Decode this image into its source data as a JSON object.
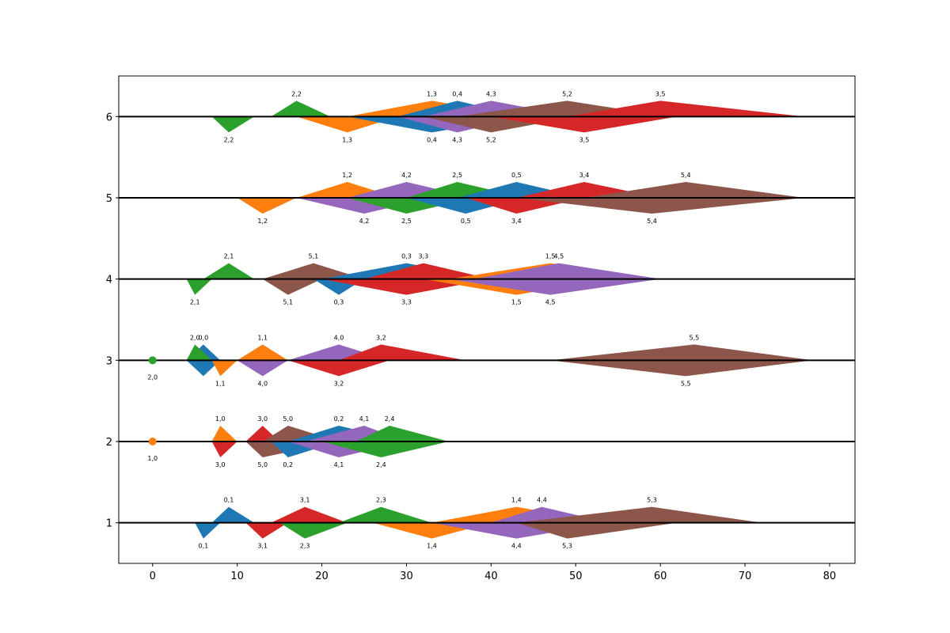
{
  "chart_data": {
    "type": "kite",
    "title": "",
    "xlabel": "",
    "ylabel": "",
    "xlim": [
      -4,
      83
    ],
    "ylim": [
      0.5,
      6.5
    ],
    "xticks": [
      0,
      10,
      20,
      30,
      40,
      50,
      60,
      70,
      80
    ],
    "yticks": [
      1,
      2,
      3,
      4,
      5,
      6
    ],
    "grid": false,
    "baselines": [
      1,
      2,
      3,
      4,
      5,
      6
    ],
    "colors": [
      "#1f77b4",
      "#ff7f0e",
      "#2ca02c",
      "#d62728",
      "#9467bd",
      "#8c564b"
    ],
    "dots": [
      {
        "x": 0,
        "y": 2,
        "color": "#ff7f0e",
        "label": "1,0"
      },
      {
        "x": 0,
        "y": 3,
        "color": "#2ca02c",
        "label": "2,0"
      }
    ],
    "kites": [
      {
        "label": "0,0",
        "color": 0,
        "y": 3,
        "x0": 4,
        "xpeak": 6,
        "x1": 8,
        "dir": "both"
      },
      {
        "label": "2,0",
        "color": 2,
        "y": 3,
        "x0": 4,
        "xpeak": 5,
        "x1": 7,
        "dir": "up"
      },
      {
        "label": "1,1",
        "color": 1,
        "y": 3,
        "x0": 7,
        "xpeak": 8,
        "x1": 10,
        "dir": "down"
      },
      {
        "label": "1,1",
        "color": 1,
        "y": 3,
        "x0": 10,
        "xpeak": 13,
        "x1": 16,
        "dir": "up"
      },
      {
        "label": "4,0",
        "color": 4,
        "y": 3,
        "x0": 10,
        "xpeak": 13,
        "x1": 16,
        "dir": "down"
      },
      {
        "label": "4,0",
        "color": 4,
        "y": 3,
        "x0": 16,
        "xpeak": 22,
        "x1": 28,
        "dir": "up"
      },
      {
        "label": "3,2",
        "color": 3,
        "y": 3,
        "x0": 16,
        "xpeak": 22,
        "x1": 28,
        "dir": "down"
      },
      {
        "label": "3,2",
        "color": 3,
        "y": 3,
        "x0": 22,
        "xpeak": 27,
        "x1": 37,
        "dir": "up"
      },
      {
        "label": "5,5",
        "color": 5,
        "y": 3,
        "x0": 47,
        "xpeak": 64,
        "x1": 78,
        "dir": "up"
      },
      {
        "label": "5,5",
        "color": 5,
        "y": 3,
        "x0": 47,
        "xpeak": 63,
        "x1": 78,
        "dir": "down"
      },
      {
        "label": "1,0",
        "color": 1,
        "y": 2,
        "x0": 7,
        "xpeak": 8,
        "x1": 10,
        "dir": "up"
      },
      {
        "label": "3,0",
        "color": 3,
        "y": 2,
        "x0": 7,
        "xpeak": 8,
        "x1": 10,
        "dir": "down"
      },
      {
        "label": "3,0",
        "color": 3,
        "y": 2,
        "x0": 11,
        "xpeak": 13,
        "x1": 15,
        "dir": "up"
      },
      {
        "label": "5,0",
        "color": 5,
        "y": 2,
        "x0": 11,
        "xpeak": 13,
        "x1": 22,
        "dir": "down"
      },
      {
        "label": "5,0",
        "color": 5,
        "y": 2,
        "x0": 13,
        "xpeak": 16,
        "x1": 22,
        "dir": "up"
      },
      {
        "label": "0,2",
        "color": 0,
        "y": 2,
        "x0": 14,
        "xpeak": 16,
        "x1": 22,
        "dir": "down"
      },
      {
        "label": "0,2",
        "color": 0,
        "y": 2,
        "x0": 16,
        "xpeak": 22,
        "x1": 30,
        "dir": "up"
      },
      {
        "label": "4,1",
        "color": 4,
        "y": 2,
        "x0": 16,
        "xpeak": 22,
        "x1": 30,
        "dir": "down"
      },
      {
        "label": "4,1",
        "color": 4,
        "y": 2,
        "x0": 18,
        "xpeak": 25,
        "x1": 30,
        "dir": "up"
      },
      {
        "label": "2,4",
        "color": 2,
        "y": 2,
        "x0": 20,
        "xpeak": 27,
        "x1": 35,
        "dir": "down"
      },
      {
        "label": "2,4",
        "color": 2,
        "y": 2,
        "x0": 24,
        "xpeak": 28,
        "x1": 35,
        "dir": "up"
      },
      {
        "label": "0,1",
        "color": 0,
        "y": 1,
        "x0": 5,
        "xpeak": 6,
        "x1": 8,
        "dir": "down"
      },
      {
        "label": "0,1",
        "color": 0,
        "y": 1,
        "x0": 7,
        "xpeak": 9,
        "x1": 12,
        "dir": "up"
      },
      {
        "label": "3,1",
        "color": 3,
        "y": 1,
        "x0": 11,
        "xpeak": 13,
        "x1": 16,
        "dir": "down"
      },
      {
        "label": "3,1",
        "color": 3,
        "y": 1,
        "x0": 14,
        "xpeak": 18,
        "x1": 23,
        "dir": "up"
      },
      {
        "label": "2,3",
        "color": 2,
        "y": 1,
        "x0": 15,
        "xpeak": 18,
        "x1": 23,
        "dir": "down"
      },
      {
        "label": "2,3",
        "color": 2,
        "y": 1,
        "x0": 22,
        "xpeak": 27,
        "x1": 33,
        "dir": "up"
      },
      {
        "label": "1,4",
        "color": 1,
        "y": 1,
        "x0": 26,
        "xpeak": 33,
        "x1": 40,
        "dir": "down"
      },
      {
        "label": "1,4",
        "color": 1,
        "y": 1,
        "x0": 33,
        "xpeak": 43,
        "x1": 54,
        "dir": "up"
      },
      {
        "label": "4,4",
        "color": 4,
        "y": 1,
        "x0": 33,
        "xpeak": 43,
        "x1": 54,
        "dir": "down"
      },
      {
        "label": "4,4",
        "color": 4,
        "y": 1,
        "x0": 40,
        "xpeak": 46,
        "x1": 54,
        "dir": "up"
      },
      {
        "label": "5,3",
        "color": 5,
        "y": 1,
        "x0": 43,
        "xpeak": 49,
        "x1": 62,
        "dir": "down"
      },
      {
        "label": "5,3",
        "color": 5,
        "y": 1,
        "x0": 43,
        "xpeak": 59,
        "x1": 72,
        "dir": "up"
      },
      {
        "label": "2,1",
        "color": 2,
        "y": 4,
        "x0": 4,
        "xpeak": 5,
        "x1": 7,
        "dir": "down"
      },
      {
        "label": "2,1",
        "color": 2,
        "y": 4,
        "x0": 6,
        "xpeak": 9,
        "x1": 12,
        "dir": "up"
      },
      {
        "label": "5,1",
        "color": 5,
        "y": 4,
        "x0": 13,
        "xpeak": 16,
        "x1": 20,
        "dir": "down"
      },
      {
        "label": "5,1",
        "color": 5,
        "y": 4,
        "x0": 13,
        "xpeak": 19,
        "x1": 25,
        "dir": "up"
      },
      {
        "label": "0,3",
        "color": 0,
        "y": 4,
        "x0": 19,
        "xpeak": 22,
        "x1": 25,
        "dir": "down"
      },
      {
        "label": "0,3",
        "color": 0,
        "y": 4,
        "x0": 20,
        "xpeak": 30,
        "x1": 40,
        "dir": "up"
      },
      {
        "label": "3,3",
        "color": 3,
        "y": 4,
        "x0": 20,
        "xpeak": 30,
        "x1": 40,
        "dir": "down"
      },
      {
        "label": "3,3",
        "color": 3,
        "y": 4,
        "x0": 25,
        "xpeak": 32,
        "x1": 40,
        "dir": "up"
      },
      {
        "label": "1,5",
        "color": 1,
        "y": 4,
        "x0": 32,
        "xpeak": 43,
        "x1": 54,
        "dir": "down"
      },
      {
        "label": "1,5",
        "color": 1,
        "y": 4,
        "x0": 35,
        "xpeak": 47,
        "x1": 60,
        "dir": "up"
      },
      {
        "label": "4,5",
        "color": 4,
        "y": 4,
        "x0": 35,
        "xpeak": 47,
        "x1": 60,
        "dir": "down"
      },
      {
        "label": "4,5",
        "color": 4,
        "y": 4,
        "x0": 38,
        "xpeak": 48,
        "x1": 60,
        "dir": "up"
      },
      {
        "label": "1,2",
        "color": 1,
        "y": 5,
        "x0": 10,
        "xpeak": 13,
        "x1": 17,
        "dir": "down"
      },
      {
        "label": "1,2",
        "color": 1,
        "y": 5,
        "x0": 17,
        "xpeak": 23,
        "x1": 29,
        "dir": "up"
      },
      {
        "label": "4,2",
        "color": 4,
        "y": 5,
        "x0": 17,
        "xpeak": 25,
        "x1": 33,
        "dir": "down"
      },
      {
        "label": "4,2",
        "color": 4,
        "y": 5,
        "x0": 23,
        "xpeak": 30,
        "x1": 38,
        "dir": "up"
      },
      {
        "label": "2,5",
        "color": 2,
        "y": 5,
        "x0": 23,
        "xpeak": 30,
        "x1": 38,
        "dir": "down"
      },
      {
        "label": "2,5",
        "color": 2,
        "y": 5,
        "x0": 30,
        "xpeak": 36,
        "x1": 44,
        "dir": "up"
      },
      {
        "label": "0,5",
        "color": 0,
        "y": 5,
        "x0": 30,
        "xpeak": 37,
        "x1": 44,
        "dir": "down"
      },
      {
        "label": "0,5",
        "color": 0,
        "y": 5,
        "x0": 36,
        "xpeak": 43,
        "x1": 51,
        "dir": "up"
      },
      {
        "label": "3,4",
        "color": 3,
        "y": 5,
        "x0": 37,
        "xpeak": 43,
        "x1": 51,
        "dir": "down"
      },
      {
        "label": "3,4",
        "color": 3,
        "y": 5,
        "x0": 43,
        "xpeak": 51,
        "x1": 60,
        "dir": "up"
      },
      {
        "label": "5,4",
        "color": 5,
        "y": 5,
        "x0": 43,
        "xpeak": 59,
        "x1": 77,
        "dir": "down"
      },
      {
        "label": "5,4",
        "color": 5,
        "y": 5,
        "x0": 51,
        "xpeak": 63,
        "x1": 77,
        "dir": "up"
      },
      {
        "label": "2,2",
        "color": 2,
        "y": 6,
        "x0": 7,
        "xpeak": 9,
        "x1": 12,
        "dir": "down"
      },
      {
        "label": "2,2",
        "color": 2,
        "y": 6,
        "x0": 14,
        "xpeak": 17,
        "x1": 21,
        "dir": "up"
      },
      {
        "label": "1,3",
        "color": 1,
        "y": 6,
        "x0": 17,
        "xpeak": 23,
        "x1": 29,
        "dir": "down"
      },
      {
        "label": "1,3",
        "color": 1,
        "y": 6,
        "x0": 23,
        "xpeak": 33,
        "x1": 44,
        "dir": "up"
      },
      {
        "label": "0,4",
        "color": 0,
        "y": 6,
        "x0": 23,
        "xpeak": 33,
        "x1": 44,
        "dir": "down"
      },
      {
        "label": "0,4",
        "color": 0,
        "y": 6,
        "x0": 29,
        "xpeak": 36,
        "x1": 44,
        "dir": "up"
      },
      {
        "label": "4,3",
        "color": 4,
        "y": 6,
        "x0": 29,
        "xpeak": 36,
        "x1": 44,
        "dir": "down"
      },
      {
        "label": "4,3",
        "color": 4,
        "y": 6,
        "x0": 32,
        "xpeak": 40,
        "x1": 50,
        "dir": "up"
      },
      {
        "label": "5,2",
        "color": 5,
        "y": 6,
        "x0": 32,
        "xpeak": 40,
        "x1": 50,
        "dir": "down"
      },
      {
        "label": "5,2",
        "color": 5,
        "y": 6,
        "x0": 36,
        "xpeak": 49,
        "x1": 61,
        "dir": "up"
      },
      {
        "label": "3,5",
        "color": 3,
        "y": 6,
        "x0": 40,
        "xpeak": 51,
        "x1": 62,
        "dir": "down"
      },
      {
        "label": "3,5",
        "color": 3,
        "y": 6,
        "x0": 49,
        "xpeak": 60,
        "x1": 77,
        "dir": "up"
      }
    ]
  }
}
